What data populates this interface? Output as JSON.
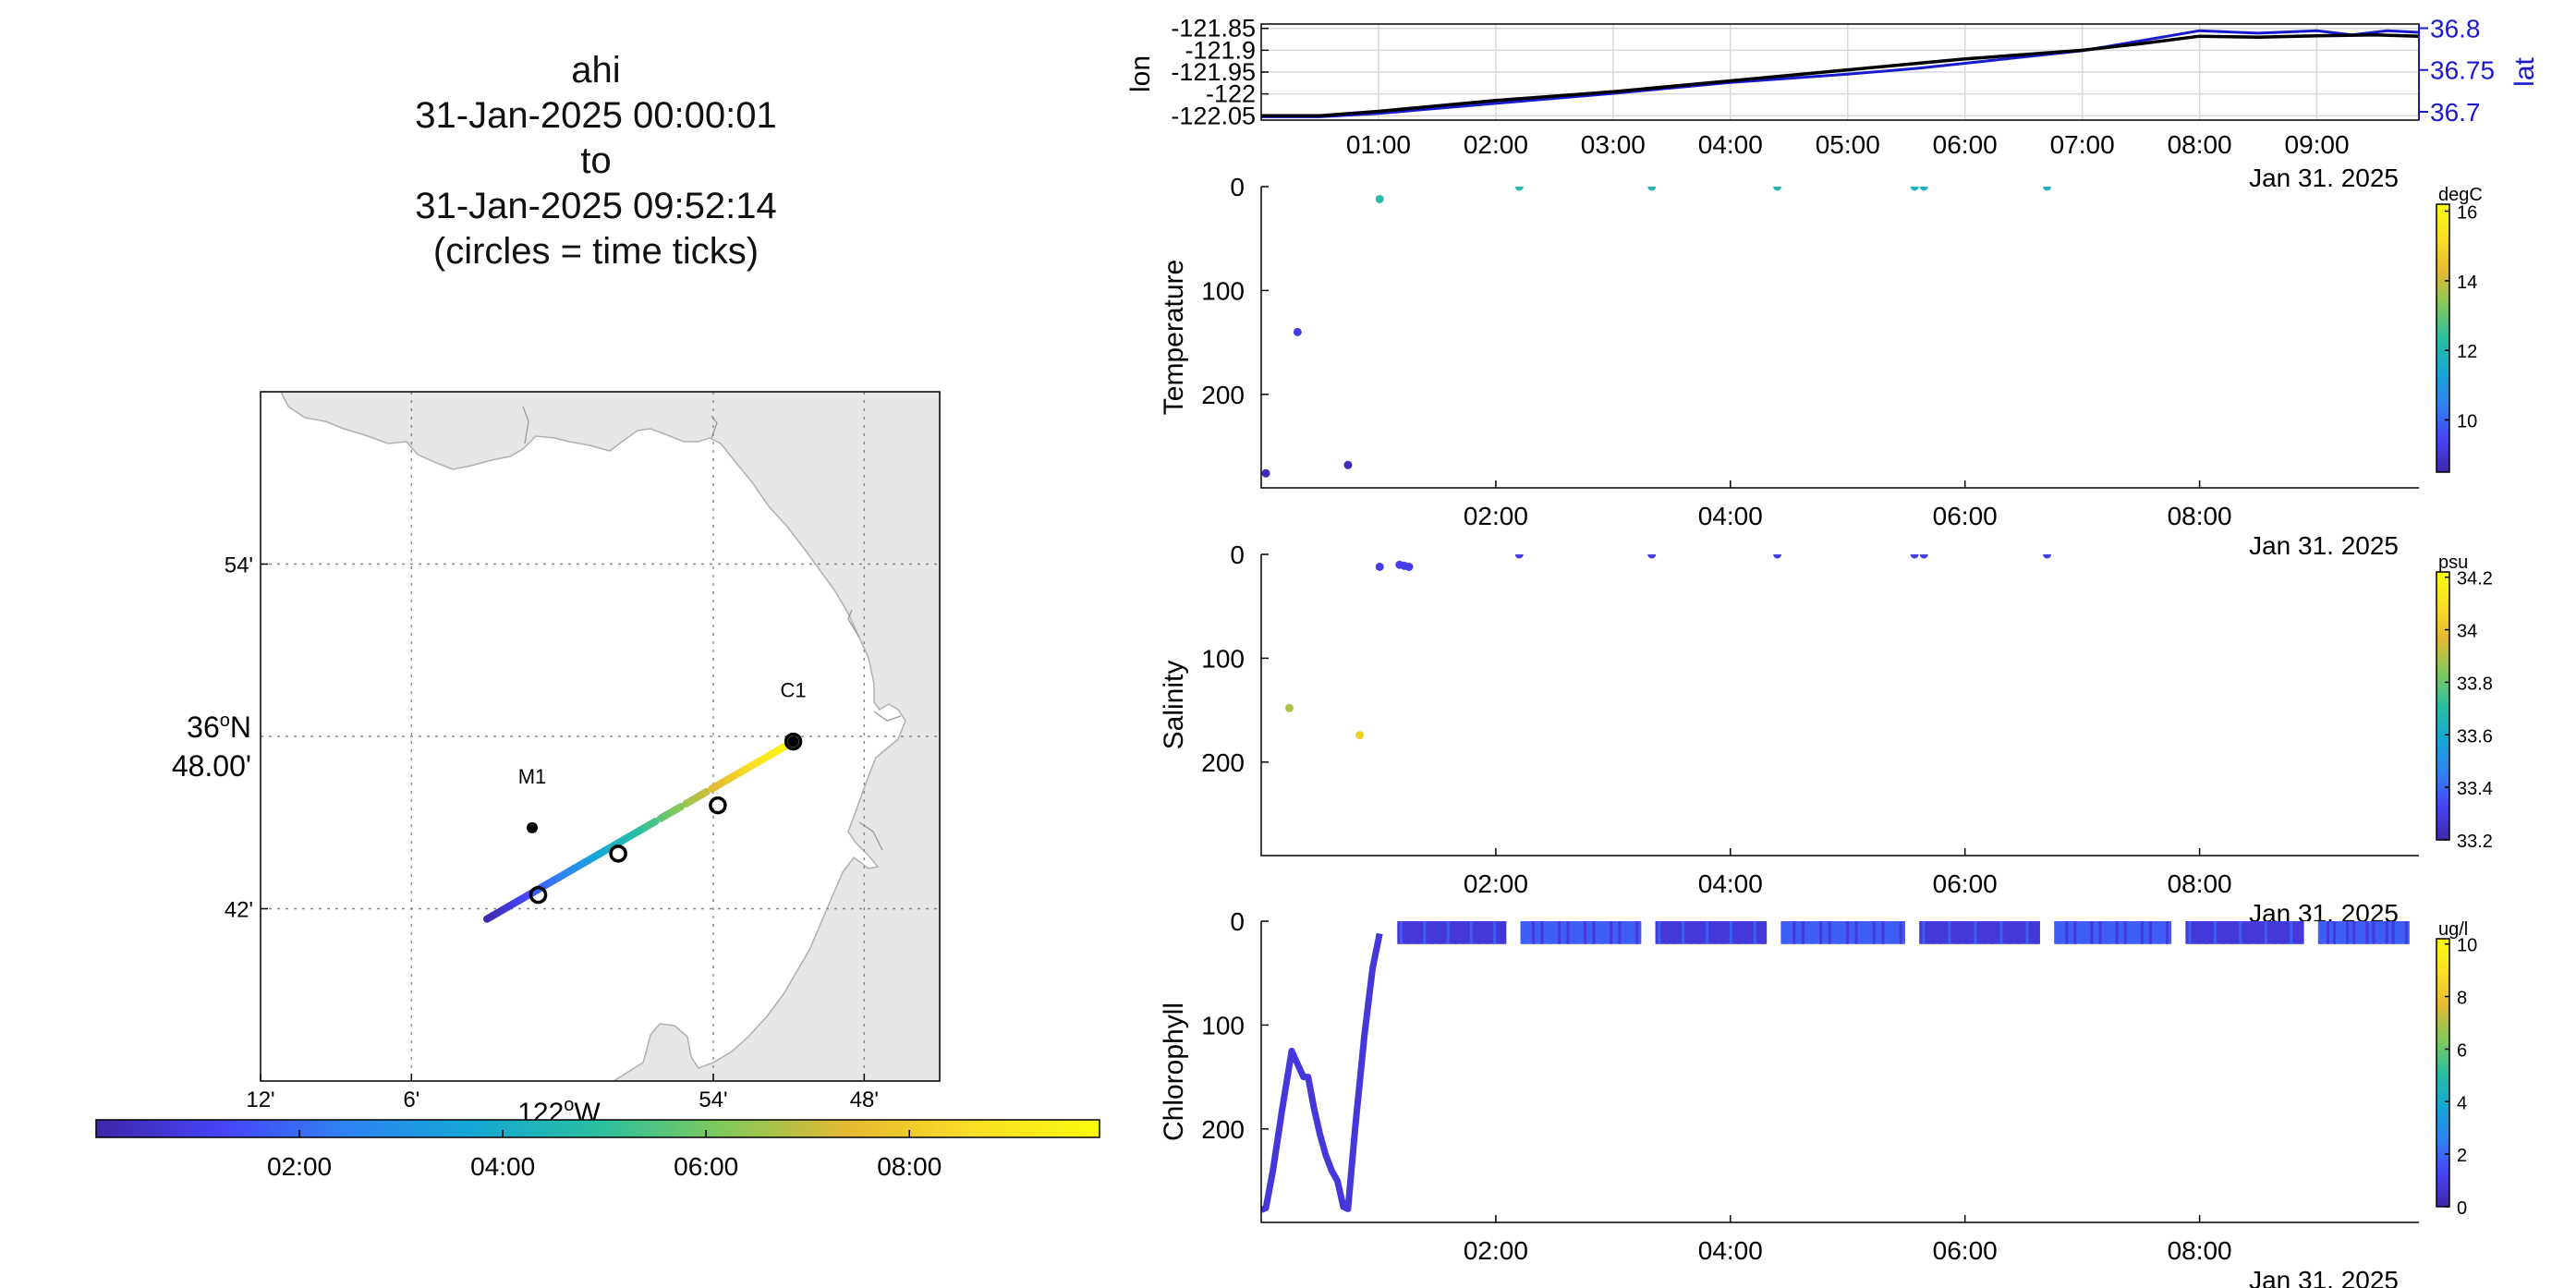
{
  "title": {
    "glider": "ahi",
    "start": "31-Jan-2025 00:00:01",
    "to": "to",
    "end": "31-Jan-2025 09:52:14",
    "note": "(circles = time ticks)"
  },
  "colors": {
    "coast_fill": "#e6e6e6",
    "coast_line": "#b0b0b0",
    "grid": "#9a9a9a",
    "lon_line": "#000000",
    "lat_line": "#1a1acc",
    "lat_axis": "#1a1acc"
  },
  "colormap": [
    "#3e26a8",
    "#4743f8",
    "#2f83f4",
    "#14a8d5",
    "#29bfa0",
    "#82c95a",
    "#e5b931",
    "#f9df25",
    "#f9fb0e"
  ],
  "chart_data": [
    {
      "type": "line",
      "id": "track-map",
      "x_label_degrees": "122",
      "x_label_suffix": "W",
      "y_label_degrees": "36",
      "y_label_suffix": "N",
      "y_label_minutes": "48.00'",
      "x_ticks": [
        "12'",
        "6'",
        "54'",
        "48'"
      ],
      "x_tick_lon": [
        -122.2,
        -122.1,
        -121.9,
        -121.8
      ],
      "y_ticks": [
        "54'",
        "42'"
      ],
      "y_tick_lat": [
        36.9,
        36.7
      ],
      "x_range": [
        -122.2,
        -121.75
      ],
      "y_range": [
        36.6,
        37.0
      ],
      "grid": true,
      "stations": [
        {
          "label": "M1",
          "lon": -122.02,
          "lat": 36.747
        },
        {
          "label": "C1",
          "lon": -121.847,
          "lat": 36.797
        }
      ],
      "track_start": {
        "lon": -122.05,
        "lat": 36.694
      },
      "track_end": {
        "lon": -121.847,
        "lat": 36.797
      },
      "time_tick_markers": [
        {
          "lon": -122.016,
          "lat": 36.708
        },
        {
          "lon": -121.963,
          "lat": 36.732
        },
        {
          "lon": -121.897,
          "lat": 36.76
        },
        {
          "lon": -121.847,
          "lat": 36.797
        }
      ]
    },
    {
      "type": "colorbar",
      "id": "time-colorbar",
      "ticks": [
        "02:00",
        "04:00",
        "06:00",
        "08:00"
      ],
      "tick_hours": [
        2,
        4,
        6,
        8
      ],
      "range_hours": [
        0,
        9.87
      ]
    },
    {
      "type": "line",
      "id": "lon-lat",
      "ylabel_left": "lon",
      "ylabel_right": "lat",
      "left_ticks": [
        "-121.85",
        "-121.9",
        "-121.95",
        "-122",
        "-122.05"
      ],
      "left_tick_values": [
        -121.85,
        -121.9,
        -121.95,
        -122.0,
        -122.05
      ],
      "left_range": [
        -122.06,
        -121.84
      ],
      "right_ticks": [
        "36.8",
        "36.75",
        "36.7"
      ],
      "right_tick_values": [
        36.8,
        36.75,
        36.7
      ],
      "right_range": [
        36.69,
        36.805
      ],
      "x_ticks": [
        "01:00",
        "02:00",
        "03:00",
        "04:00",
        "05:00",
        "06:00",
        "07:00",
        "08:00",
        "09:00"
      ],
      "x_tick_hours": [
        1,
        2,
        3,
        4,
        5,
        6,
        7,
        8,
        9
      ],
      "x_range_hours": [
        0,
        9.87
      ],
      "date_label": "Jan 31, 2025",
      "grid": true,
      "series": [
        {
          "name": "lon",
          "x": [
            0,
            0.5,
            1,
            2,
            3,
            4,
            5,
            5.6,
            6,
            7,
            7.5,
            8,
            8.5,
            9,
            9.5,
            9.87
          ],
          "values": [
            -122.05,
            -122.05,
            -122.04,
            -122.015,
            -121.995,
            -121.97,
            -121.945,
            -121.93,
            -121.92,
            -121.9,
            -121.885,
            -121.868,
            -121.87,
            -121.867,
            -121.865,
            -121.868
          ]
        },
        {
          "name": "lat",
          "x": [
            0,
            0.5,
            1,
            2,
            3,
            4,
            5,
            5.6,
            6,
            7,
            7.5,
            8,
            8.5,
            9,
            9.3,
            9.6,
            9.87
          ],
          "values": [
            36.694,
            36.694,
            36.698,
            36.71,
            36.722,
            36.735,
            36.745,
            36.752,
            36.758,
            36.773,
            36.785,
            36.797,
            36.794,
            36.797,
            36.792,
            36.797,
            36.795
          ]
        }
      ]
    },
    {
      "type": "scatter",
      "id": "temperature",
      "ylabel": "Temperature",
      "y_ticks": [
        "0",
        "100",
        "200"
      ],
      "y_tick_values": [
        0,
        100,
        200
      ],
      "y_range": [
        0,
        290
      ],
      "y_reversed": true,
      "x_ticks": [
        "02:00",
        "04:00",
        "06:00",
        "08:00"
      ],
      "x_tick_hours": [
        2,
        4,
        6,
        8
      ],
      "x_range_hours": [
        0,
        9.87
      ],
      "date_label": "Jan 31, 2025",
      "colorbar": {
        "unit": "degC",
        "ticks": [
          "16",
          "14",
          "12",
          "10"
        ],
        "tick_values": [
          16,
          14,
          12,
          10
        ],
        "range": [
          8.5,
          16.2
        ]
      },
      "points": [
        {
          "x": 0.04,
          "y": 276,
          "c": 8.7
        },
        {
          "x": 0.31,
          "y": 140,
          "c": 9.2
        },
        {
          "x": 0.74,
          "y": 268,
          "c": 8.7
        },
        {
          "x": 1.01,
          "y": 12,
          "c": 12.2
        },
        {
          "x": 2.2,
          "y": 0,
          "c": 12.1
        },
        {
          "x": 3.33,
          "y": 0,
          "c": 12.0
        },
        {
          "x": 4.4,
          "y": 0,
          "c": 12.1
        },
        {
          "x": 5.57,
          "y": 0,
          "c": 11.9
        },
        {
          "x": 5.65,
          "y": 0,
          "c": 11.9
        },
        {
          "x": 6.7,
          "y": 0,
          "c": 11.9
        }
      ]
    },
    {
      "type": "scatter",
      "id": "salinity",
      "ylabel": "Salinity",
      "y_ticks": [
        "0",
        "100",
        "200"
      ],
      "y_tick_values": [
        0,
        100,
        200
      ],
      "y_range": [
        0,
        290
      ],
      "y_reversed": true,
      "x_ticks": [
        "02:00",
        "04:00",
        "06:00",
        "08:00"
      ],
      "x_tick_hours": [
        2,
        4,
        6,
        8
      ],
      "x_range_hours": [
        0,
        9.87
      ],
      "date_label": "Jan 31, 2025",
      "colorbar": {
        "unit": "psu",
        "ticks": [
          "34.2",
          "34",
          "33.8",
          "33.6",
          "33.4",
          "33.2"
        ],
        "tick_values": [
          34.2,
          34.0,
          33.8,
          33.6,
          33.4,
          33.2
        ],
        "range": [
          33.2,
          34.22
        ]
      },
      "points": [
        {
          "x": 0.24,
          "y": 148,
          "c": 33.9
        },
        {
          "x": 0.84,
          "y": 174,
          "c": 34.05
        },
        {
          "x": 1.01,
          "y": 12,
          "c": 33.3
        },
        {
          "x": 1.18,
          "y": 10,
          "c": 33.3
        },
        {
          "x": 1.22,
          "y": 11,
          "c": 33.3
        },
        {
          "x": 1.26,
          "y": 12,
          "c": 33.3
        },
        {
          "x": 2.2,
          "y": 0,
          "c": 33.3
        },
        {
          "x": 3.33,
          "y": 0,
          "c": 33.3
        },
        {
          "x": 4.4,
          "y": 0,
          "c": 33.3
        },
        {
          "x": 5.57,
          "y": 0,
          "c": 33.3
        },
        {
          "x": 5.65,
          "y": 0,
          "c": 33.3
        },
        {
          "x": 6.7,
          "y": 0,
          "c": 33.3
        }
      ]
    },
    {
      "type": "scatter",
      "id": "chlorophyll",
      "ylabel": "Chlorophyll",
      "y_ticks": [
        "0",
        "100",
        "200"
      ],
      "y_tick_values": [
        0,
        100,
        200
      ],
      "y_range": [
        0,
        290
      ],
      "y_reversed": true,
      "x_ticks": [
        "02:00",
        "04:00",
        "06:00",
        "08:00"
      ],
      "x_tick_hours": [
        2,
        4,
        6,
        8
      ],
      "x_range_hours": [
        0,
        9.87
      ],
      "date_label": "Jan 31, 2025",
      "colorbar": {
        "unit": "ug/l",
        "ticks": [
          "10",
          "8",
          "6",
          "4",
          "2",
          "0"
        ],
        "tick_values": [
          10,
          8,
          6,
          4,
          2,
          0
        ],
        "range": [
          0,
          10.2
        ]
      },
      "dive_profile": {
        "x": [
          0,
          0.04,
          0.1,
          0.18,
          0.26,
          0.3,
          0.36,
          0.4,
          0.45,
          0.5,
          0.55,
          0.6,
          0.65,
          0.7,
          0.74,
          0.8,
          0.88,
          0.95,
          1.01
        ],
        "depth": [
          278,
          276,
          240,
          180,
          125,
          135,
          150,
          150,
          180,
          205,
          225,
          240,
          250,
          275,
          277,
          200,
          110,
          45,
          12
        ],
        "c": 0.8
      },
      "surface_band": {
        "x_start": 1.1,
        "x_end": 9.85,
        "depth_min": 0,
        "depth_max": 22,
        "c_low": 0.8,
        "c_high": 1.8,
        "gaps": [
          2.15,
          3.3,
          4.37,
          5.55,
          6.7,
          7.82,
          8.95
        ]
      }
    }
  ]
}
